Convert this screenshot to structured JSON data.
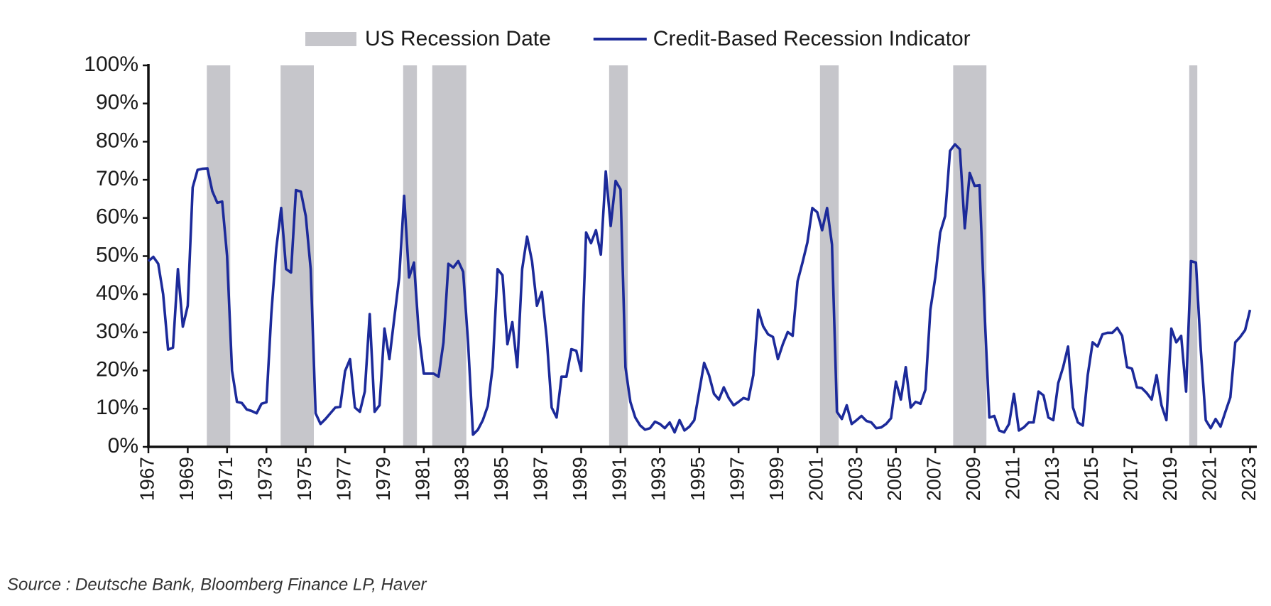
{
  "chart_data": {
    "type": "line",
    "source": "Source : Deutsche Bank, Bloomberg Finance LP, Haver",
    "xlim": [
      1967,
      2023.2
    ],
    "xticks": [
      1967,
      1969,
      1971,
      1973,
      1975,
      1977,
      1979,
      1981,
      1983,
      1985,
      1987,
      1989,
      1991,
      1993,
      1995,
      1997,
      1999,
      2001,
      2003,
      2005,
      2007,
      2009,
      2011,
      2013,
      2015,
      2017,
      2019,
      2021,
      2023
    ],
    "ylim": [
      0,
      100
    ],
    "yticks": [
      {
        "value": 0,
        "label": "0%"
      },
      {
        "value": 10,
        "label": "10%"
      },
      {
        "value": 20,
        "label": "20%"
      },
      {
        "value": 30,
        "label": "30%"
      },
      {
        "value": 40,
        "label": "40%"
      },
      {
        "value": 50,
        "label": "50%"
      },
      {
        "value": 60,
        "label": "60%"
      },
      {
        "value": 70,
        "label": "70%"
      },
      {
        "value": 80,
        "label": "80%"
      },
      {
        "value": 90,
        "label": "90%"
      },
      {
        "value": 100,
        "label": "100%"
      }
    ],
    "grid": false,
    "series": [
      {
        "name": "US Recession Date",
        "type": "band",
        "color": "#c6c6cb",
        "ranges": [
          [
            1969.97,
            1971.16
          ],
          [
            1973.72,
            1975.41
          ],
          [
            1979.95,
            1980.65
          ],
          [
            1981.43,
            1983.16
          ],
          [
            1990.42,
            1991.37
          ],
          [
            2001.14,
            2002.09
          ],
          [
            2007.91,
            2009.6
          ],
          [
            2019.91,
            2020.32
          ]
        ]
      },
      {
        "name": "Credit-Based Recession Indicator",
        "type": "line",
        "color": "#1c2a9a",
        "x": [
          1967,
          1967.25,
          1967.5,
          1967.75,
          1968,
          1968.25,
          1968.5,
          1968.75,
          1969,
          1969.25,
          1969.5,
          1969.75,
          1970,
          1970.25,
          1970.5,
          1970.75,
          1971,
          1971.25,
          1971.5,
          1971.75,
          1972,
          1972.25,
          1972.5,
          1972.75,
          1973,
          1973.25,
          1973.5,
          1973.75,
          1974,
          1974.25,
          1974.5,
          1974.75,
          1975,
          1975.25,
          1975.5,
          1975.75,
          1976,
          1976.25,
          1976.5,
          1976.75,
          1977,
          1977.25,
          1977.5,
          1977.75,
          1978,
          1978.25,
          1978.5,
          1978.75,
          1979,
          1979.25,
          1979.5,
          1979.75,
          1980,
          1980.25,
          1980.5,
          1980.75,
          1981,
          1981.25,
          1981.5,
          1981.75,
          1982,
          1982.25,
          1982.5,
          1982.75,
          1983,
          1983.25,
          1983.5,
          1983.75,
          1984,
          1984.25,
          1984.5,
          1984.75,
          1985,
          1985.25,
          1985.5,
          1985.75,
          1986,
          1986.25,
          1986.5,
          1986.75,
          1987,
          1987.25,
          1987.5,
          1987.75,
          1988,
          1988.25,
          1988.5,
          1988.75,
          1989,
          1989.25,
          1989.5,
          1989.75,
          1990,
          1990.25,
          1990.5,
          1990.75,
          1991,
          1991.25,
          1991.5,
          1991.75,
          1992,
          1992.25,
          1992.5,
          1992.75,
          1993,
          1993.25,
          1993.5,
          1993.75,
          1994,
          1994.25,
          1994.5,
          1994.75,
          1995,
          1995.25,
          1995.5,
          1995.75,
          1996,
          1996.25,
          1996.5,
          1996.75,
          1997,
          1997.25,
          1997.5,
          1997.75,
          1998,
          1998.25,
          1998.5,
          1998.75,
          1999,
          1999.25,
          1999.5,
          1999.75,
          2000,
          2000.25,
          2000.5,
          2000.75,
          2001,
          2001.25,
          2001.5,
          2001.75,
          2002,
          2002.25,
          2002.5,
          2002.75,
          2003,
          2003.25,
          2003.5,
          2003.75,
          2004,
          2004.25,
          2004.5,
          2004.75,
          2005,
          2005.25,
          2005.5,
          2005.75,
          2006,
          2006.25,
          2006.5,
          2006.75,
          2007,
          2007.25,
          2007.5,
          2007.75,
          2008,
          2008.25,
          2008.5,
          2008.75,
          2009,
          2009.25,
          2009.5,
          2009.75,
          2010,
          2010.25,
          2010.5,
          2010.75,
          2011,
          2011.25,
          2011.5,
          2011.75,
          2012,
          2012.25,
          2012.5,
          2012.75,
          2013,
          2013.25,
          2013.5,
          2013.75,
          2014,
          2014.25,
          2014.5,
          2014.75,
          2015,
          2015.25,
          2015.5,
          2015.75,
          2016,
          2016.25,
          2016.5,
          2016.75,
          2017,
          2017.25,
          2017.5,
          2017.75,
          2018,
          2018.25,
          2018.5,
          2018.75,
          2019,
          2019.25,
          2019.5,
          2019.75,
          2020,
          2020.25,
          2020.5,
          2020.75,
          2021,
          2021.25,
          2021.5,
          2021.75,
          2022,
          2022.25,
          2022.5,
          2022.75,
          2023
        ],
        "values": [
          48.7,
          49.8,
          48,
          40,
          25.5,
          26,
          46.6,
          31.5,
          37,
          68,
          72.6,
          72.9,
          73,
          67,
          64,
          64.3,
          50,
          20,
          11.8,
          11.5,
          9.8,
          9.4,
          8.8,
          11.3,
          11.7,
          35,
          52,
          62.6,
          46.6,
          45.7,
          67.3,
          66.9,
          60.5,
          46.6,
          8.8,
          6,
          7.3,
          8.8,
          10.3,
          10.5,
          19.9,
          23,
          10.3,
          9.2,
          14.5,
          34.8,
          9.2,
          10.9,
          31,
          23,
          33.8,
          44.4,
          65.8,
          44.4,
          48.3,
          29.5,
          19.2,
          19.2,
          19.2,
          18.4,
          27.4,
          48,
          47,
          48.7,
          45.9,
          27.4,
          3.2,
          4.5,
          7,
          10.7,
          20.9,
          46.6,
          45,
          26.9,
          32.7,
          20.9,
          46.6,
          55.1,
          48.7,
          37,
          40.6,
          28.4,
          10.3,
          7.7,
          18.4,
          18.4,
          25.6,
          25.2,
          19.9,
          56.2,
          53.4,
          56.8,
          50.4,
          72.2,
          57.9,
          69.7,
          67.5,
          20.9,
          11.8,
          7.7,
          5.6,
          4.5,
          4.9,
          6.6,
          6,
          4.9,
          6.4,
          3.8,
          7,
          4.3,
          5.3,
          7,
          14.5,
          22,
          18.8,
          13.9,
          12.4,
          15.6,
          12.8,
          10.9,
          11.8,
          12.8,
          12.4,
          18.8,
          35.9,
          31.6,
          29.5,
          28.8,
          23,
          26.9,
          30.1,
          29.1,
          43.4,
          48.3,
          53.6,
          62.6,
          61.5,
          56.8,
          62.6,
          53,
          9.2,
          7.3,
          10.9,
          6,
          7,
          8.1,
          6.8,
          6.4,
          4.9,
          5.1,
          6,
          7.5,
          17.1,
          12.4,
          20.9,
          10.3,
          11.8,
          11.3,
          15,
          35.9,
          44.4,
          56.2,
          60.5,
          77.6,
          79.3,
          78,
          57.3,
          71.8,
          68.4,
          68.6,
          35.9,
          7.7,
          8.1,
          4.3,
          3.8,
          6,
          13.9,
          4.3,
          5.1,
          6.4,
          6.4,
          14.5,
          13.5,
          7.7,
          7,
          16.7,
          20.9,
          26.3,
          10.3,
          6.4,
          5.6,
          18.8,
          27.4,
          26.3,
          29.5,
          29.9,
          29.9,
          31.2,
          29.1,
          20.9,
          20.5,
          15.6,
          15.4,
          14.1,
          12.4,
          18.8,
          10.9,
          7,
          31,
          27.4,
          29.1,
          14.5,
          48.7,
          48.3,
          25.2,
          7,
          4.9,
          7.3,
          5.3,
          9.2,
          13,
          27.4,
          28.8,
          30.6,
          35.9
        ]
      }
    ]
  }
}
